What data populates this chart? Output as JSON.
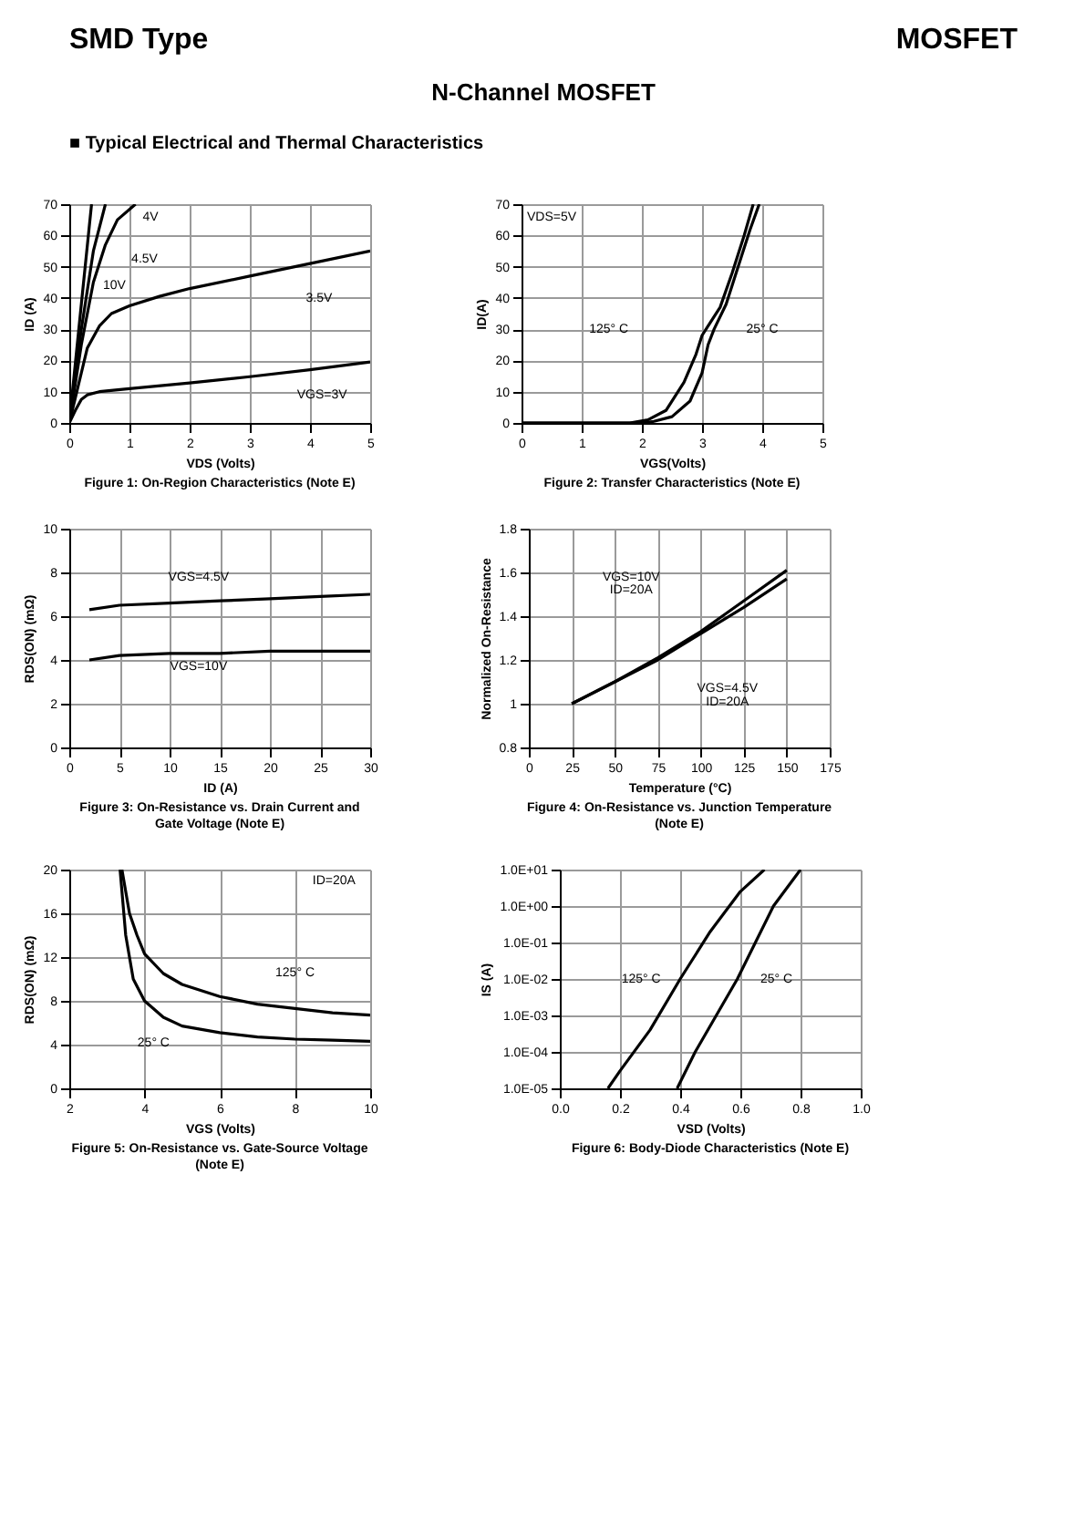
{
  "chart_data": [
    {
      "type": "other",
      "annotations": [
        "SMD Type",
        "MOSFET",
        "N-Channel MOSFET",
        "■ Typical Electrical and Thermal Characteristics"
      ]
    },
    {
      "type": "line",
      "title": "Figure 1: On-Region Characteristics (Note E)",
      "xlabel": "VDS (Volts)",
      "ylabel": "ID (A)",
      "xlim": [
        0,
        5
      ],
      "ylim": [
        0,
        70
      ],
      "xticks": [
        0,
        1,
        2,
        3,
        4,
        5
      ],
      "yticks": [
        0,
        10,
        20,
        30,
        40,
        50,
        60,
        70
      ],
      "grid": true,
      "annotations": [
        "4V",
        "4.5V",
        "10V",
        "3.5V",
        "VGS=3V"
      ],
      "series": [
        {
          "color": "#000000",
          "x": [
            0,
            0.1,
            0.2,
            0.3,
            0.5,
            1,
            2,
            3,
            4,
            5
          ],
          "values": [
            0,
            4,
            7.5,
            9,
            10,
            11,
            12.8,
            14.8,
            17,
            19.5
          ]
        },
        {
          "color": "#000000",
          "x": [
            0,
            0.1,
            0.2,
            0.3,
            0.5,
            0.7,
            1,
            1.5,
            2,
            3,
            4,
            5
          ],
          "values": [
            0,
            8,
            16,
            24,
            31,
            35,
            37.5,
            40.5,
            43,
            47,
            51,
            55
          ]
        },
        {
          "color": "#000000",
          "x": [
            0,
            0.2,
            0.4,
            0.6,
            0.8,
            1.1
          ],
          "values": [
            0,
            25,
            45,
            57,
            65,
            70
          ]
        },
        {
          "color": "#000000",
          "x": [
            0,
            0.2,
            0.4,
            0.6
          ],
          "values": [
            0,
            30,
            55,
            70
          ]
        },
        {
          "color": "#000000",
          "x": [
            0,
            0.2,
            0.37
          ],
          "values": [
            0,
            38,
            70
          ]
        }
      ]
    },
    {
      "type": "line",
      "title": "Figure 2: Transfer Characteristics (Note E)",
      "xlabel": "VGS(Volts)",
      "ylabel": "ID(A)",
      "xlim": [
        0,
        5
      ],
      "ylim": [
        0,
        70
      ],
      "xticks": [
        0,
        1,
        2,
        3,
        4,
        5
      ],
      "yticks": [
        0,
        10,
        20,
        30,
        40,
        50,
        60,
        70
      ],
      "grid": true,
      "annotations": [
        "VDS=5V",
        "125° C",
        "25° C"
      ],
      "series": [
        {
          "color": "#000000",
          "x": [
            0,
            1.8,
            2.1,
            2.4,
            2.7,
            2.9,
            3.0,
            3.1,
            3.3,
            3.5,
            3.7,
            3.85
          ],
          "values": [
            0,
            0,
            1,
            4,
            13,
            22,
            28,
            31,
            37,
            48,
            60,
            70
          ]
        },
        {
          "color": "#000000",
          "x": [
            0,
            2,
            2.2,
            2.5,
            2.8,
            3,
            3.1,
            3.2,
            3.4,
            3.6,
            3.8,
            3.95
          ],
          "values": [
            0,
            0,
            0.5,
            2,
            7,
            16,
            25,
            30,
            38,
            50,
            62,
            70
          ]
        }
      ]
    },
    {
      "type": "line",
      "title": "Figure 3: On-Resistance vs. Drain Current and Gate Voltage (Note E)",
      "xlabel": "ID (A)",
      "ylabel": "RDS(ON) (mΩ)",
      "xlim": [
        0,
        30
      ],
      "ylim": [
        0,
        10
      ],
      "xticks": [
        0,
        5,
        10,
        15,
        20,
        25,
        30
      ],
      "yticks": [
        0,
        2,
        4,
        6,
        8,
        10
      ],
      "grid": true,
      "annotations": [
        "VGS=4.5V",
        "VGS=10V"
      ],
      "series": [
        {
          "color": "#000000",
          "x": [
            2,
            5,
            10,
            15,
            20,
            25,
            30
          ],
          "values": [
            6.3,
            6.5,
            6.6,
            6.7,
            6.8,
            6.9,
            7.0
          ]
        },
        {
          "color": "#000000",
          "x": [
            2,
            5,
            10,
            15,
            20,
            25,
            30
          ],
          "values": [
            4.0,
            4.2,
            4.3,
            4.3,
            4.4,
            4.4,
            4.4
          ]
        }
      ]
    },
    {
      "type": "line",
      "title": "Figure 4: On-Resistance vs. Junction Temperature (Note E)",
      "xlabel": "Temperature (°C)",
      "ylabel": "Normalized On-Resistance",
      "xlim": [
        0,
        175
      ],
      "ylim": [
        0.8,
        1.8
      ],
      "xticks": [
        0,
        25,
        50,
        75,
        100,
        125,
        150,
        175
      ],
      "yticks": [
        0.8,
        1,
        1.2,
        1.4,
        1.6,
        1.8
      ],
      "grid": true,
      "annotations": [
        "VGS=10V",
        "ID=20A",
        "VGS=4.5V",
        "ID=20A"
      ],
      "series": [
        {
          "color": "#000000",
          "x": [
            25,
            50,
            75,
            100,
            125,
            150
          ],
          "values": [
            1.0,
            1.1,
            1.21,
            1.33,
            1.47,
            1.61
          ]
        },
        {
          "color": "#000000",
          "x": [
            25,
            50,
            75,
            100,
            125,
            150
          ],
          "values": [
            1.0,
            1.1,
            1.2,
            1.32,
            1.44,
            1.57
          ]
        }
      ]
    },
    {
      "type": "line",
      "title": "Figure 5: On-Resistance vs. Gate-Source Voltage (Note E)",
      "xlabel": "VGS (Volts)",
      "ylabel": "RDS(ON) (mΩ)",
      "xlim": [
        2,
        10
      ],
      "ylim": [
        0,
        20
      ],
      "xticks": [
        2,
        4,
        6,
        8,
        10
      ],
      "yticks": [
        0,
        4,
        8,
        12,
        16,
        20
      ],
      "grid": true,
      "annotations": [
        "ID=20A",
        "125° C",
        "25° C"
      ],
      "series": [
        {
          "color": "#000000",
          "x": [
            3.4,
            3.6,
            3.8,
            4,
            4.5,
            5,
            6,
            7,
            8,
            9,
            10
          ],
          "values": [
            20,
            16,
            14,
            12.3,
            10.5,
            9.5,
            8.4,
            7.7,
            7.3,
            6.9,
            6.7
          ]
        },
        {
          "color": "#000000",
          "x": [
            3.35,
            3.5,
            3.7,
            4,
            4.5,
            5,
            6,
            7,
            8,
            9,
            10
          ],
          "values": [
            20,
            14,
            10,
            8,
            6.5,
            5.7,
            5.1,
            4.7,
            4.5,
            4.4,
            4.3
          ]
        }
      ]
    },
    {
      "type": "line",
      "title": "Figure 6: Body-Diode Characteristics (Note E)",
      "xlabel": "VSD (Volts)",
      "ylabel": "IS (A)",
      "log": "y",
      "xlim": [
        0,
        1
      ],
      "ylim": [
        1e-05,
        10
      ],
      "xticks": [
        {
          "value": 0,
          "label": "0.0"
        },
        {
          "value": 0.2,
          "label": "0.2"
        },
        {
          "value": 0.4,
          "label": "0.4"
        },
        {
          "value": 0.6,
          "label": "0.6"
        },
        {
          "value": 0.8,
          "label": "0.8"
        },
        {
          "value": 1,
          "label": "1.0"
        }
      ],
      "yticks": [
        {
          "value": 1e-05,
          "label": "1.0E-05"
        },
        {
          "value": 0.0001,
          "label": "1.0E-04"
        },
        {
          "value": 0.001,
          "label": "1.0E-03"
        },
        {
          "value": 0.01,
          "label": "1.0E-02"
        },
        {
          "value": 0.1,
          "label": "1.0E-01"
        },
        {
          "value": 1,
          "label": "1.0E+00"
        },
        {
          "value": 10,
          "label": "1.0E+01"
        }
      ],
      "grid": true,
      "annotations": [
        "125° C",
        "25° C"
      ],
      "series": [
        {
          "color": "#000000",
          "x": [
            0.16,
            0.2,
            0.3,
            0.4,
            0.5,
            0.6,
            0.68
          ],
          "values": [
            1e-05,
            3e-05,
            0.0004,
            0.01,
            0.2,
            2.5,
            10
          ]
        },
        {
          "color": "#000000",
          "x": [
            0.39,
            0.45,
            0.52,
            0.59,
            0.65,
            0.71,
            0.8
          ],
          "values": [
            1e-05,
            0.0001,
            0.001,
            0.01,
            0.1,
            1,
            10
          ]
        }
      ]
    }
  ]
}
